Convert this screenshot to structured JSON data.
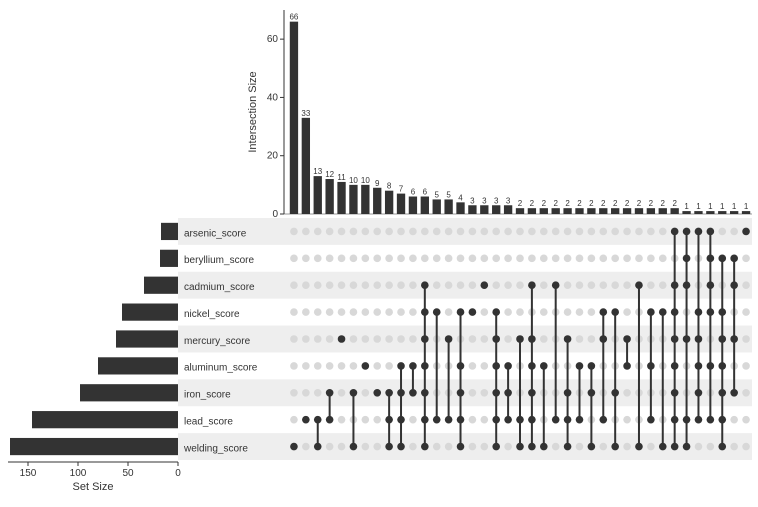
{
  "upset": {
    "type": "upset",
    "background_color": "#ffffff",
    "bar_color": "#333333",
    "dot_active_color": "#333333",
    "dot_inactive_color": "#d8d8d8",
    "stripe_color": "#eeeeee",
    "text_color": "#333333",
    "label_fontsize": 10,
    "axis_fontsize": 10,
    "value_fontsize": 8,
    "sets": [
      {
        "name": "arsenic_score",
        "size": 17
      },
      {
        "name": "beryllium_score",
        "size": 18
      },
      {
        "name": "cadmium_score",
        "size": 34
      },
      {
        "name": "nickel_score",
        "size": 56
      },
      {
        "name": "mercury_score",
        "size": 62
      },
      {
        "name": "aluminum_score",
        "size": 80
      },
      {
        "name": "iron_score",
        "size": 98
      },
      {
        "name": "lead_score",
        "size": 146
      },
      {
        "name": "welding_score",
        "size": 168
      }
    ],
    "set_size_axis_label": "Set Size",
    "set_size_ticks": [
      0,
      50,
      100,
      150
    ],
    "set_size_max": 170,
    "intersection_axis_label": "Intersection Size",
    "intersection_ticks": [
      0,
      20,
      40,
      60
    ],
    "intersection_max": 70,
    "intersections": [
      {
        "value": 66,
        "members": [
          "welding_score"
        ]
      },
      {
        "value": 33,
        "members": [
          "lead_score"
        ]
      },
      {
        "value": 13,
        "members": [
          "lead_score",
          "welding_score"
        ]
      },
      {
        "value": 12,
        "members": [
          "lead_score",
          "iron_score"
        ]
      },
      {
        "value": 11,
        "members": [
          "mercury_score"
        ]
      },
      {
        "value": 10,
        "members": [
          "iron_score",
          "welding_score"
        ]
      },
      {
        "value": 10,
        "members": [
          "aluminum_score"
        ]
      },
      {
        "value": 9,
        "members": [
          "iron_score"
        ]
      },
      {
        "value": 8,
        "members": [
          "lead_score",
          "iron_score",
          "welding_score"
        ]
      },
      {
        "value": 7,
        "members": [
          "aluminum_score",
          "iron_score",
          "lead_score",
          "welding_score"
        ]
      },
      {
        "value": 6,
        "members": [
          "aluminum_score",
          "iron_score"
        ]
      },
      {
        "value": 6,
        "members": [
          "cadmium_score",
          "nickel_score",
          "mercury_score",
          "aluminum_score",
          "iron_score",
          "lead_score",
          "welding_score"
        ]
      },
      {
        "value": 5,
        "members": [
          "nickel_score",
          "lead_score"
        ]
      },
      {
        "value": 5,
        "members": [
          "lead_score",
          "mercury_score"
        ]
      },
      {
        "value": 4,
        "members": [
          "nickel_score",
          "aluminum_score",
          "iron_score",
          "lead_score",
          "welding_score"
        ]
      },
      {
        "value": 3,
        "members": [
          "nickel_score"
        ]
      },
      {
        "value": 3,
        "members": [
          "cadmium_score"
        ]
      },
      {
        "value": 3,
        "members": [
          "nickel_score",
          "mercury_score",
          "aluminum_score",
          "iron_score",
          "lead_score",
          "welding_score"
        ]
      },
      {
        "value": 3,
        "members": [
          "aluminum_score",
          "iron_score",
          "lead_score"
        ]
      },
      {
        "value": 2,
        "members": [
          "mercury_score",
          "lead_score",
          "welding_score"
        ]
      },
      {
        "value": 2,
        "members": [
          "cadmium_score",
          "mercury_score",
          "aluminum_score",
          "iron_score",
          "lead_score",
          "welding_score"
        ]
      },
      {
        "value": 2,
        "members": [
          "aluminum_score",
          "welding_score"
        ]
      },
      {
        "value": 2,
        "members": [
          "cadmium_score",
          "lead_score"
        ]
      },
      {
        "value": 2,
        "members": [
          "mercury_score",
          "iron_score",
          "lead_score",
          "welding_score"
        ]
      },
      {
        "value": 2,
        "members": [
          "aluminum_score",
          "lead_score"
        ]
      },
      {
        "value": 2,
        "members": [
          "aluminum_score",
          "iron_score",
          "welding_score"
        ]
      },
      {
        "value": 2,
        "members": [
          "nickel_score",
          "mercury_score",
          "lead_score"
        ]
      },
      {
        "value": 2,
        "members": [
          "nickel_score",
          "iron_score",
          "welding_score"
        ]
      },
      {
        "value": 2,
        "members": [
          "mercury_score",
          "aluminum_score"
        ]
      },
      {
        "value": 2,
        "members": [
          "cadmium_score",
          "welding_score"
        ]
      },
      {
        "value": 2,
        "members": [
          "nickel_score",
          "aluminum_score",
          "lead_score"
        ]
      },
      {
        "value": 2,
        "members": [
          "nickel_score",
          "welding_score"
        ]
      },
      {
        "value": 2,
        "members": [
          "arsenic_score",
          "cadmium_score",
          "nickel_score",
          "mercury_score",
          "aluminum_score",
          "iron_score",
          "lead_score",
          "welding_score"
        ]
      },
      {
        "value": 1,
        "members": [
          "arsenic_score",
          "beryllium_score",
          "cadmium_score",
          "mercury_score",
          "lead_score",
          "welding_score"
        ]
      },
      {
        "value": 1,
        "members": [
          "arsenic_score",
          "nickel_score",
          "mercury_score",
          "aluminum_score",
          "iron_score",
          "lead_score"
        ]
      },
      {
        "value": 1,
        "members": [
          "arsenic_score",
          "beryllium_score",
          "cadmium_score",
          "nickel_score",
          "aluminum_score",
          "lead_score"
        ]
      },
      {
        "value": 1,
        "members": [
          "beryllium_score",
          "nickel_score",
          "mercury_score",
          "aluminum_score",
          "iron_score",
          "lead_score",
          "welding_score"
        ]
      },
      {
        "value": 1,
        "members": [
          "beryllium_score",
          "cadmium_score",
          "mercury_score",
          "iron_score"
        ]
      },
      {
        "value": 1,
        "members": [
          "arsenic_score"
        ]
      }
    ]
  }
}
